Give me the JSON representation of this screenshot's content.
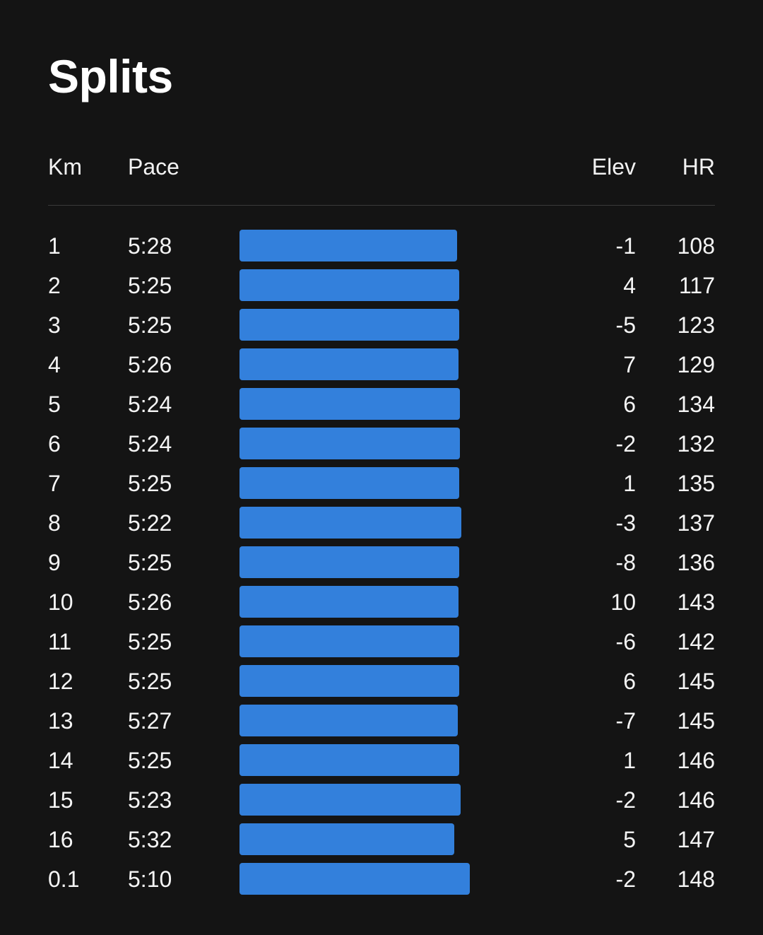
{
  "title": "Splits",
  "columns": {
    "km": "Km",
    "pace": "Pace",
    "elev": "Elev",
    "hr": "HR"
  },
  "colors": {
    "background": "#141414",
    "bar": "#3380dc",
    "text": "#ffffff"
  },
  "splits": [
    {
      "km": "1",
      "pace": "5:28",
      "elev": "-1",
      "hr": "108"
    },
    {
      "km": "2",
      "pace": "5:25",
      "elev": "4",
      "hr": "117"
    },
    {
      "km": "3",
      "pace": "5:25",
      "elev": "-5",
      "hr": "123"
    },
    {
      "km": "4",
      "pace": "5:26",
      "elev": "7",
      "hr": "129"
    },
    {
      "km": "5",
      "pace": "5:24",
      "elev": "6",
      "hr": "134"
    },
    {
      "km": "6",
      "pace": "5:24",
      "elev": "-2",
      "hr": "132"
    },
    {
      "km": "7",
      "pace": "5:25",
      "elev": "1",
      "hr": "135"
    },
    {
      "km": "8",
      "pace": "5:22",
      "elev": "-3",
      "hr": "137"
    },
    {
      "km": "9",
      "pace": "5:25",
      "elev": "-8",
      "hr": "136"
    },
    {
      "km": "10",
      "pace": "5:26",
      "elev": "10",
      "hr": "143"
    },
    {
      "km": "11",
      "pace": "5:25",
      "elev": "-6",
      "hr": "142"
    },
    {
      "km": "12",
      "pace": "5:25",
      "elev": "6",
      "hr": "145"
    },
    {
      "km": "13",
      "pace": "5:27",
      "elev": "-7",
      "hr": "145"
    },
    {
      "km": "14",
      "pace": "5:25",
      "elev": "1",
      "hr": "146"
    },
    {
      "km": "15",
      "pace": "5:23",
      "elev": "-2",
      "hr": "146"
    },
    {
      "km": "16",
      "pace": "5:32",
      "elev": "5",
      "hr": "147"
    },
    {
      "km": "0.1",
      "pace": "5:10",
      "elev": "-2",
      "hr": "148"
    }
  ]
}
